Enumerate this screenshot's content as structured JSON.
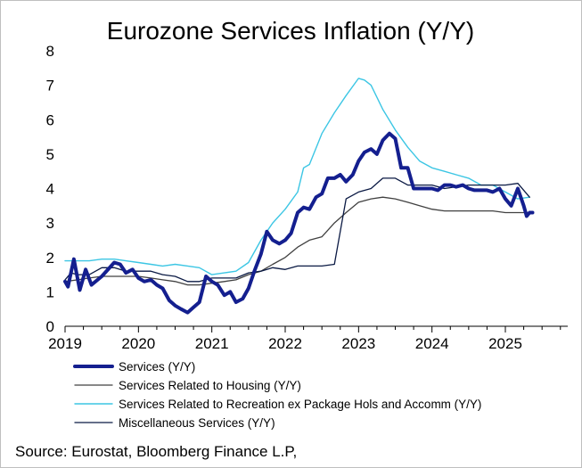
{
  "chart_data": {
    "type": "line",
    "title": "Eurozone Services Inflation (Y/Y)",
    "xlabel": "",
    "ylabel": "",
    "xlim": [
      2019.0,
      2025.85
    ],
    "ylim": [
      0,
      8
    ],
    "x_ticks": [
      2019,
      2020,
      2021,
      2022,
      2023,
      2024,
      2025
    ],
    "x_tick_labels": [
      "2019",
      "2020",
      "2021",
      "2022",
      "2023",
      "2024",
      "2025"
    ],
    "y_ticks": [
      0,
      1,
      2,
      3,
      4,
      5,
      6,
      7,
      8
    ],
    "y_tick_labels": [
      "0",
      "1",
      "2",
      "3",
      "4",
      "5",
      "6",
      "7",
      "8"
    ],
    "grid": false,
    "legend_position": "bottom",
    "series": [
      {
        "name": "Services Related to Recreation ex Package Hols and Accomm (Y/Y)",
        "color": "#3cc6e4",
        "width": 1.4,
        "points": [
          [
            2019.0,
            1.9
          ],
          [
            2019.17,
            1.9
          ],
          [
            2019.33,
            1.9
          ],
          [
            2019.5,
            1.95
          ],
          [
            2019.67,
            1.95
          ],
          [
            2019.83,
            1.9
          ],
          [
            2020.0,
            1.85
          ],
          [
            2020.17,
            1.8
          ],
          [
            2020.33,
            1.75
          ],
          [
            2020.5,
            1.8
          ],
          [
            2020.67,
            1.75
          ],
          [
            2020.83,
            1.7
          ],
          [
            2021.0,
            1.5
          ],
          [
            2021.17,
            1.55
          ],
          [
            2021.33,
            1.6
          ],
          [
            2021.5,
            1.85
          ],
          [
            2021.67,
            2.5
          ],
          [
            2021.83,
            3.0
          ],
          [
            2022.0,
            3.4
          ],
          [
            2022.17,
            3.9
          ],
          [
            2022.25,
            4.6
          ],
          [
            2022.33,
            4.7
          ],
          [
            2022.5,
            5.6
          ],
          [
            2022.67,
            6.2
          ],
          [
            2022.83,
            6.7
          ],
          [
            2023.0,
            7.2
          ],
          [
            2023.08,
            7.15
          ],
          [
            2023.17,
            7.0
          ],
          [
            2023.33,
            6.3
          ],
          [
            2023.5,
            5.7
          ],
          [
            2023.67,
            5.2
          ],
          [
            2023.83,
            4.8
          ],
          [
            2024.0,
            4.6
          ],
          [
            2024.17,
            4.5
          ],
          [
            2024.33,
            4.4
          ],
          [
            2024.5,
            4.3
          ],
          [
            2024.67,
            4.1
          ],
          [
            2024.83,
            4.1
          ],
          [
            2025.0,
            3.9
          ],
          [
            2025.17,
            3.7
          ],
          [
            2025.33,
            3.75
          ]
        ]
      },
      {
        "name": "Services Related to Housing (Y/Y)",
        "color": "#404040",
        "width": 1.3,
        "points": [
          [
            2019.0,
            1.3
          ],
          [
            2019.17,
            1.35
          ],
          [
            2019.33,
            1.4
          ],
          [
            2019.5,
            1.45
          ],
          [
            2019.67,
            1.45
          ],
          [
            2019.83,
            1.45
          ],
          [
            2020.0,
            1.45
          ],
          [
            2020.17,
            1.4
          ],
          [
            2020.33,
            1.35
          ],
          [
            2020.5,
            1.3
          ],
          [
            2020.67,
            1.2
          ],
          [
            2020.83,
            1.2
          ],
          [
            2021.0,
            1.25
          ],
          [
            2021.17,
            1.3
          ],
          [
            2021.33,
            1.35
          ],
          [
            2021.5,
            1.5
          ],
          [
            2021.67,
            1.6
          ],
          [
            2021.83,
            1.8
          ],
          [
            2022.0,
            2.0
          ],
          [
            2022.17,
            2.3
          ],
          [
            2022.33,
            2.5
          ],
          [
            2022.5,
            2.6
          ],
          [
            2022.67,
            3.0
          ],
          [
            2022.83,
            3.3
          ],
          [
            2023.0,
            3.6
          ],
          [
            2023.17,
            3.7
          ],
          [
            2023.33,
            3.75
          ],
          [
            2023.5,
            3.7
          ],
          [
            2023.67,
            3.6
          ],
          [
            2023.83,
            3.5
          ],
          [
            2024.0,
            3.4
          ],
          [
            2024.17,
            3.35
          ],
          [
            2024.33,
            3.35
          ],
          [
            2024.5,
            3.35
          ],
          [
            2024.67,
            3.35
          ],
          [
            2024.83,
            3.35
          ],
          [
            2025.0,
            3.3
          ],
          [
            2025.17,
            3.3
          ],
          [
            2025.33,
            3.3
          ]
        ]
      },
      {
        "name": "Miscellaneous Services (Y/Y)",
        "color": "#0b1a44",
        "width": 1.3,
        "points": [
          [
            2019.0,
            1.35
          ],
          [
            2019.08,
            1.55
          ],
          [
            2019.17,
            1.5
          ],
          [
            2019.33,
            1.5
          ],
          [
            2019.5,
            1.7
          ],
          [
            2019.67,
            1.7
          ],
          [
            2019.83,
            1.6
          ],
          [
            2020.0,
            1.6
          ],
          [
            2020.17,
            1.6
          ],
          [
            2020.33,
            1.5
          ],
          [
            2020.5,
            1.45
          ],
          [
            2020.67,
            1.3
          ],
          [
            2020.83,
            1.3
          ],
          [
            2021.0,
            1.4
          ],
          [
            2021.17,
            1.4
          ],
          [
            2021.33,
            1.4
          ],
          [
            2021.5,
            1.55
          ],
          [
            2021.67,
            1.6
          ],
          [
            2021.83,
            1.7
          ],
          [
            2022.0,
            1.65
          ],
          [
            2022.17,
            1.75
          ],
          [
            2022.33,
            1.75
          ],
          [
            2022.5,
            1.75
          ],
          [
            2022.67,
            1.8
          ],
          [
            2022.83,
            3.7
          ],
          [
            2023.0,
            3.9
          ],
          [
            2023.17,
            4.0
          ],
          [
            2023.33,
            4.3
          ],
          [
            2023.5,
            4.3
          ],
          [
            2023.67,
            4.1
          ],
          [
            2023.83,
            4.1
          ],
          [
            2024.0,
            4.1
          ],
          [
            2024.17,
            4.0
          ],
          [
            2024.33,
            4.05
          ],
          [
            2024.5,
            4.1
          ],
          [
            2024.67,
            4.1
          ],
          [
            2024.83,
            4.1
          ],
          [
            2025.0,
            4.1
          ],
          [
            2025.17,
            4.15
          ],
          [
            2025.33,
            3.75
          ]
        ]
      },
      {
        "name": "Services (Y/Y)",
        "color": "#141f8f",
        "width": 4,
        "points": [
          [
            2019.0,
            1.3
          ],
          [
            2019.04,
            1.15
          ],
          [
            2019.12,
            1.95
          ],
          [
            2019.2,
            1.05
          ],
          [
            2019.28,
            1.65
          ],
          [
            2019.36,
            1.2
          ],
          [
            2019.5,
            1.45
          ],
          [
            2019.67,
            1.85
          ],
          [
            2019.75,
            1.8
          ],
          [
            2019.83,
            1.55
          ],
          [
            2019.92,
            1.65
          ],
          [
            2020.0,
            1.4
          ],
          [
            2020.08,
            1.3
          ],
          [
            2020.17,
            1.35
          ],
          [
            2020.25,
            1.2
          ],
          [
            2020.33,
            1.1
          ],
          [
            2020.42,
            0.75
          ],
          [
            2020.5,
            0.6
          ],
          [
            2020.58,
            0.5
          ],
          [
            2020.67,
            0.4
          ],
          [
            2020.75,
            0.55
          ],
          [
            2020.83,
            0.7
          ],
          [
            2020.92,
            1.45
          ],
          [
            2021.0,
            1.3
          ],
          [
            2021.08,
            1.2
          ],
          [
            2021.17,
            0.9
          ],
          [
            2021.25,
            1.0
          ],
          [
            2021.33,
            0.7
          ],
          [
            2021.42,
            0.8
          ],
          [
            2021.5,
            1.1
          ],
          [
            2021.58,
            1.6
          ],
          [
            2021.67,
            2.1
          ],
          [
            2021.75,
            2.75
          ],
          [
            2021.83,
            2.5
          ],
          [
            2021.92,
            2.4
          ],
          [
            2022.0,
            2.5
          ],
          [
            2022.08,
            2.7
          ],
          [
            2022.17,
            3.3
          ],
          [
            2022.25,
            3.45
          ],
          [
            2022.33,
            3.4
          ],
          [
            2022.42,
            3.75
          ],
          [
            2022.5,
            3.85
          ],
          [
            2022.58,
            4.3
          ],
          [
            2022.67,
            4.3
          ],
          [
            2022.75,
            4.4
          ],
          [
            2022.83,
            4.2
          ],
          [
            2022.92,
            4.4
          ],
          [
            2023.0,
            4.8
          ],
          [
            2023.08,
            5.05
          ],
          [
            2023.17,
            5.15
          ],
          [
            2023.25,
            5.0
          ],
          [
            2023.33,
            5.4
          ],
          [
            2023.42,
            5.6
          ],
          [
            2023.5,
            5.45
          ],
          [
            2023.58,
            4.6
          ],
          [
            2023.67,
            4.6
          ],
          [
            2023.75,
            4.0
          ],
          [
            2023.83,
            4.0
          ],
          [
            2024.0,
            4.0
          ],
          [
            2024.08,
            3.95
          ],
          [
            2024.17,
            4.1
          ],
          [
            2024.25,
            4.1
          ],
          [
            2024.33,
            4.05
          ],
          [
            2024.42,
            4.1
          ],
          [
            2024.5,
            4.0
          ],
          [
            2024.58,
            3.95
          ],
          [
            2024.67,
            3.95
          ],
          [
            2024.75,
            3.95
          ],
          [
            2024.83,
            3.9
          ],
          [
            2024.92,
            4.0
          ],
          [
            2025.0,
            3.7
          ],
          [
            2025.08,
            3.5
          ],
          [
            2025.17,
            4.0
          ],
          [
            2025.25,
            3.5
          ],
          [
            2025.29,
            3.2
          ],
          [
            2025.33,
            3.3
          ],
          [
            2025.37,
            3.3
          ]
        ]
      }
    ],
    "legend": [
      {
        "label": "Services (Y/Y)",
        "color": "#141f8f",
        "width": 4
      },
      {
        "label": "Services Related to Housing (Y/Y)",
        "color": "#404040",
        "width": 1.3
      },
      {
        "label": "Services Related to Recreation ex Package Hols and Accomm (Y/Y)",
        "color": "#3cc6e4",
        "width": 1.4
      },
      {
        "label": "Miscellaneous Services (Y/Y)",
        "color": "#0b1a44",
        "width": 1.3
      }
    ],
    "source": "Source: Eurostat, Bloomberg Finance L.P,"
  }
}
